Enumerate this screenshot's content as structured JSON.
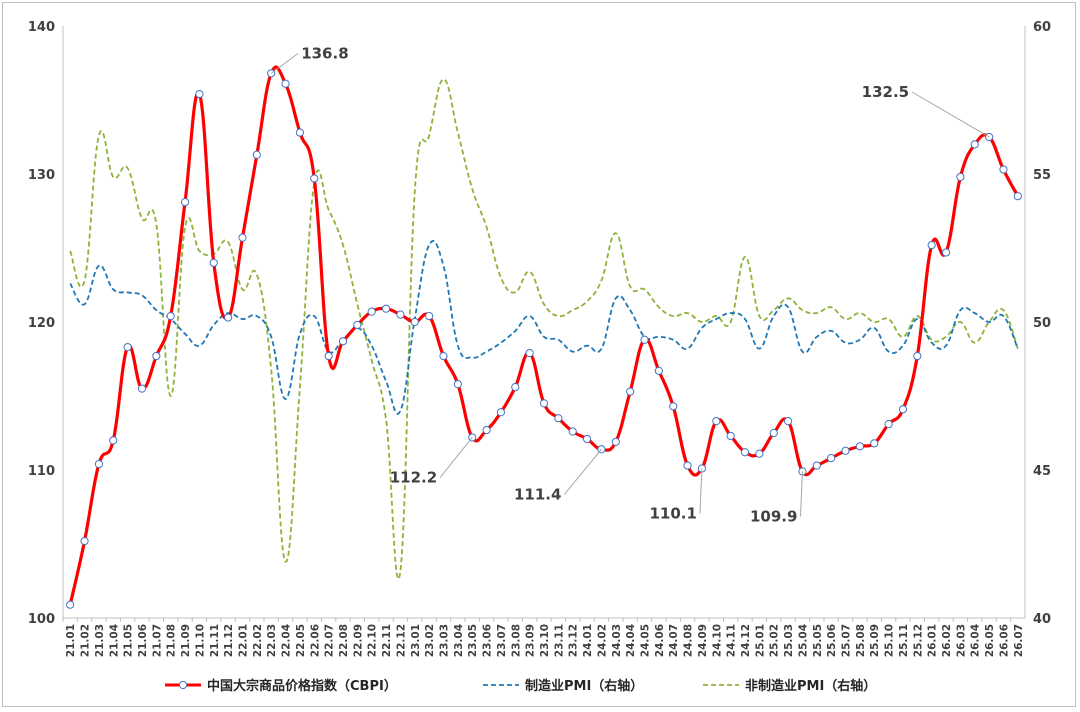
{
  "chart_data": {
    "type": "line",
    "title": "",
    "left_axis": {
      "ylim": [
        100,
        140
      ],
      "ticks": [
        100,
        110,
        120,
        130,
        140
      ]
    },
    "right_axis": {
      "ylim": [
        40,
        60
      ],
      "ticks": [
        40,
        45,
        50,
        55,
        60
      ]
    },
    "grid": false,
    "legend_position": "bottom",
    "categories": [
      "21.01",
      "21.02",
      "21.03",
      "21.04",
      "21.05",
      "21.06",
      "21.07",
      "21.08",
      "21.09",
      "21.10",
      "21.11",
      "21.12",
      "22.01",
      "22.02",
      "22.03",
      "22.04",
      "22.05",
      "22.06",
      "22.07",
      "22.08",
      "22.09",
      "22.10",
      "22.11",
      "22.12",
      "23.01",
      "23.02",
      "23.03",
      "23.04",
      "23.05",
      "23.06",
      "23.07",
      "23.08",
      "23.09",
      "23.10",
      "23.11",
      "23.12",
      "24.01",
      "24.02",
      "24.03",
      "24.04",
      "24.05",
      "24.06",
      "24.07",
      "24.08",
      "24.09",
      "24.10",
      "24.11",
      "24.12",
      "25.01",
      "25.02",
      "25.03",
      "25.04",
      "25.05",
      "25.06",
      "25.07",
      "25.08",
      "25.09",
      "25.10",
      "25.11",
      "25.12",
      "26.01",
      "26.02",
      "26.03",
      "26.04",
      "26.05",
      "26.06",
      "26.07"
    ],
    "series": [
      {
        "name": "中国大宗商品价格指数（CBPI）",
        "axis": "left",
        "color": "#ff0000",
        "style": "solid-markers",
        "values": [
          100.9,
          105.2,
          110.4,
          112.0,
          118.3,
          115.5,
          117.7,
          120.4,
          128.1,
          135.4,
          124.0,
          120.3,
          125.7,
          131.3,
          136.8,
          136.1,
          132.8,
          129.7,
          117.7,
          118.7,
          119.8,
          120.7,
          120.9,
          120.5,
          120.0,
          120.4,
          117.7,
          115.8,
          112.2,
          112.7,
          113.9,
          115.6,
          117.9,
          114.5,
          113.5,
          112.6,
          112.1,
          111.4,
          111.9,
          115.3,
          118.8,
          116.7,
          114.3,
          110.3,
          110.1,
          113.3,
          112.3,
          111.2,
          111.1,
          112.5,
          113.3,
          109.9,
          110.3,
          110.8,
          111.3,
          111.6,
          111.8,
          113.1,
          114.1,
          117.7,
          125.2,
          124.7,
          129.8,
          132.0,
          132.5,
          130.3,
          128.5
        ]
      },
      {
        "name": "制造业PMI（右轴）",
        "axis": "right",
        "color": "#1f77b4",
        "style": "dashed",
        "values": [
          51.3,
          50.6,
          51.9,
          51.1,
          51.0,
          50.9,
          50.4,
          50.1,
          49.6,
          49.2,
          49.9,
          50.3,
          50.1,
          50.2,
          49.5,
          47.4,
          49.6,
          50.2,
          49.0,
          49.4,
          49.8,
          49.2,
          48.0,
          47.0,
          50.1,
          52.6,
          51.9,
          49.2,
          48.8,
          49.0,
          49.3,
          49.7,
          50.2,
          49.5,
          49.4,
          49.0,
          49.2,
          49.1,
          50.8,
          50.4,
          49.5,
          49.5,
          49.4,
          49.1,
          49.8,
          50.1,
          50.3,
          50.1,
          49.1,
          50.2,
          50.5,
          49.0,
          49.5,
          49.7,
          49.3,
          49.4,
          49.8,
          49.0,
          49.2,
          50.1,
          49.3,
          49.2,
          50.4,
          50.3,
          50.0,
          50.2,
          49.1
        ]
      },
      {
        "name": "非制造业PMI（右轴）",
        "axis": "right",
        "color": "#8db33a",
        "style": "dashed",
        "values": [
          52.4,
          51.4,
          56.3,
          54.9,
          55.2,
          53.5,
          53.3,
          47.5,
          53.2,
          52.4,
          52.3,
          52.7,
          51.1,
          51.6,
          48.4,
          41.9,
          47.8,
          54.7,
          53.8,
          52.6,
          50.6,
          48.7,
          46.7,
          41.6,
          54.4,
          56.3,
          58.2,
          56.4,
          54.5,
          53.2,
          51.5,
          51.0,
          51.7,
          50.6,
          50.2,
          50.4,
          50.7,
          51.4,
          53.0,
          51.2,
          51.1,
          50.5,
          50.2,
          50.3,
          50.0,
          50.2,
          50.0,
          52.2,
          50.2,
          50.4,
          50.8,
          50.4,
          50.3,
          50.5,
          50.1,
          50.3,
          50.0,
          50.1,
          49.5,
          50.2,
          49.4,
          49.5,
          50.0,
          49.3,
          50.0,
          50.4,
          49.1
        ]
      }
    ],
    "annotations": [
      {
        "label": "136.8",
        "index": 14
      },
      {
        "label": "112.2",
        "index": 28
      },
      {
        "label": "111.4",
        "index": 37
      },
      {
        "label": "110.1",
        "index": 44
      },
      {
        "label": "109.9",
        "index": 51
      },
      {
        "label": "132.5",
        "index": 64
      }
    ]
  }
}
